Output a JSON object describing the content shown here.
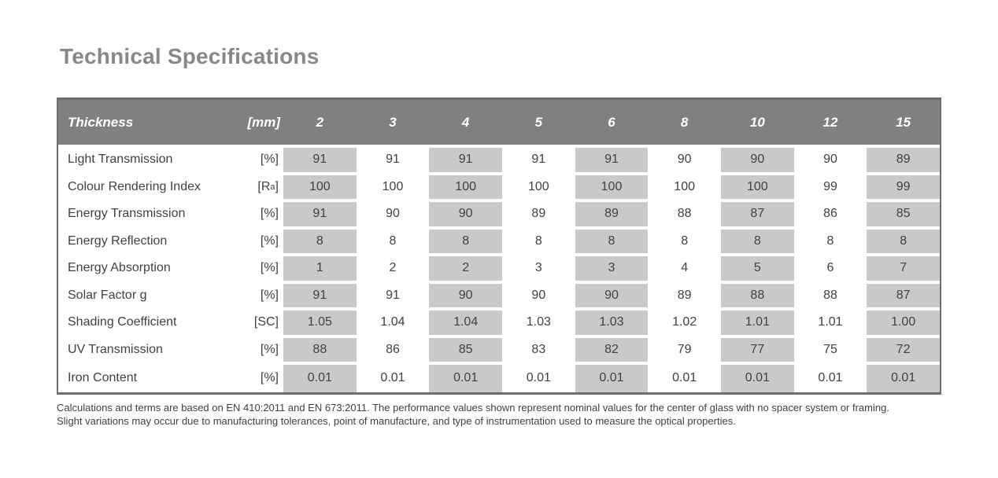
{
  "page": {
    "title": "Technical Specifications"
  },
  "colors": {
    "title_text": "#87888a",
    "header_bg": "#7f8082",
    "header_text": "#ffffff",
    "shaded_cell_bg": "#c8c9ca",
    "body_text": "#414042",
    "table_border": "#6d6e70"
  },
  "table": {
    "shaded_column_indexes": [
      0,
      2,
      4,
      6,
      8
    ],
    "header": {
      "label": "Thickness",
      "unit": "[mm]",
      "columns": [
        "2",
        "3",
        "4",
        "5",
        "6",
        "8",
        "10",
        "12",
        "15"
      ]
    },
    "rows": [
      {
        "label": "Light Transmission",
        "unit": "[%]",
        "values": [
          "91",
          "91",
          "91",
          "91",
          "91",
          "90",
          "90",
          "90",
          "89"
        ]
      },
      {
        "label": "Colour Rendering Index",
        "unit": "[R",
        "unit_sub": "a",
        "unit_end": "]",
        "values": [
          "100",
          "100",
          "100",
          "100",
          "100",
          "100",
          "100",
          "99",
          "99"
        ]
      },
      {
        "label": "Energy Transmission",
        "unit": "[%]",
        "values": [
          "91",
          "90",
          "90",
          "89",
          "89",
          "88",
          "87",
          "86",
          "85"
        ]
      },
      {
        "label": "Energy Reflection",
        "unit": "[%]",
        "values": [
          "8",
          "8",
          "8",
          "8",
          "8",
          "8",
          "8",
          "8",
          "8"
        ]
      },
      {
        "label": "Energy Absorption",
        "unit": "[%]",
        "values": [
          "1",
          "2",
          "2",
          "3",
          "3",
          "4",
          "5",
          "6",
          "7"
        ]
      },
      {
        "label": "Solar Factor g",
        "unit": "[%]",
        "values": [
          "91",
          "91",
          "90",
          "90",
          "90",
          "89",
          "88",
          "88",
          "87"
        ]
      },
      {
        "label": "Shading Coefficient",
        "unit": "[SC]",
        "values": [
          "1.05",
          "1.04",
          "1.04",
          "1.03",
          "1.03",
          "1.02",
          "1.01",
          "1.01",
          "1.00"
        ]
      },
      {
        "label": "UV Transmission",
        "unit": "[%]",
        "values": [
          "88",
          "86",
          "85",
          "83",
          "82",
          "79",
          "77",
          "75",
          "72"
        ]
      },
      {
        "label": "Iron Content",
        "unit": "[%]",
        "values": [
          "0.01",
          "0.01",
          "0.01",
          "0.01",
          "0.01",
          "0.01",
          "0.01",
          "0.01",
          "0.01"
        ]
      }
    ]
  },
  "footnote": {
    "lines": [
      "Calculations and terms are based on EN 410:2011 and EN 673:2011. The performance values shown represent nominal values for the center of glass with no spacer system or framing.",
      "Slight variations may occur due to manufacturing tolerances, point of manufacture, and type of instrumentation used to measure the optical properties."
    ]
  }
}
